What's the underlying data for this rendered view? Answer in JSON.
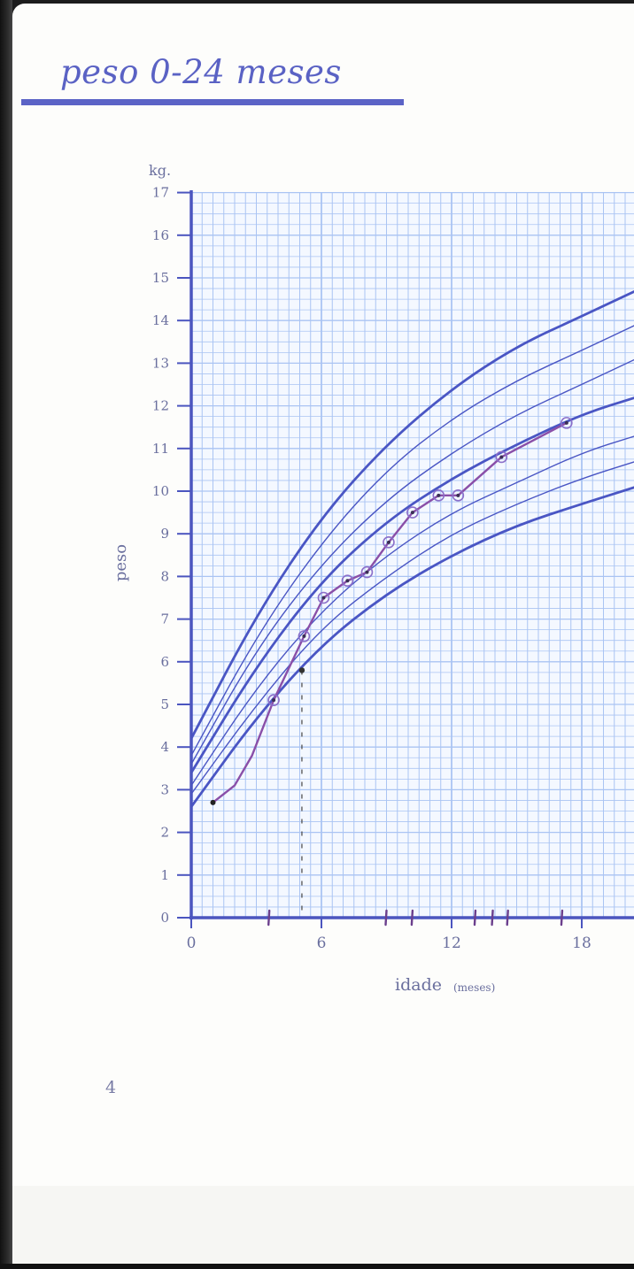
{
  "page": {
    "title": "peso 0-24 meses",
    "page_number": "4"
  },
  "colors": {
    "accent": "#5b63c6",
    "grid": "#aac4f3",
    "axis": "#4b55bf",
    "patient_line": "#8a4fa8"
  },
  "chart_data": {
    "type": "line",
    "title": "",
    "xlabel": "idade",
    "xlabel_unit": "(meses)",
    "ylabel": "peso",
    "yunit": "kg.",
    "xlim": [
      0,
      18
    ],
    "ylim": [
      0,
      17
    ],
    "xticks": [
      "0",
      "6",
      "12",
      "18"
    ],
    "yticks": [
      "0",
      "1",
      "2",
      "3",
      "4",
      "5",
      "6",
      "7",
      "8",
      "9",
      "10",
      "11",
      "12",
      "13",
      "14",
      "15",
      "16",
      "17"
    ],
    "grid": true,
    "reference_curves": [
      {
        "x": [
          0,
          3,
          6,
          9,
          12,
          15,
          18,
          20.5
        ],
        "y": [
          2.6,
          4.7,
          6.4,
          7.6,
          8.5,
          9.2,
          9.7,
          10.1
        ]
      },
      {
        "x": [
          0,
          3,
          6,
          9,
          12,
          15,
          18,
          20.5
        ],
        "y": [
          2.9,
          5.0,
          6.8,
          8.0,
          9.0,
          9.7,
          10.3,
          10.7
        ]
      },
      {
        "x": [
          0,
          3,
          6,
          9,
          12,
          15,
          18,
          20.5
        ],
        "y": [
          3.1,
          5.4,
          7.2,
          8.5,
          9.5,
          10.2,
          10.9,
          11.3
        ]
      },
      {
        "x": [
          0,
          3,
          6,
          9,
          12,
          15,
          18,
          20.5
        ],
        "y": [
          3.4,
          5.9,
          7.9,
          9.3,
          10.3,
          11.1,
          11.8,
          12.2
        ]
      },
      {
        "x": [
          0,
          3,
          6,
          9,
          12,
          15,
          18,
          20.5
        ],
        "y": [
          3.6,
          6.3,
          8.3,
          9.8,
          10.9,
          11.8,
          12.5,
          13.1
        ]
      },
      {
        "x": [
          0,
          3,
          6,
          9,
          12,
          15,
          18,
          20.5
        ],
        "y": [
          3.8,
          6.6,
          8.8,
          10.5,
          11.7,
          12.6,
          13.3,
          13.9
        ]
      },
      {
        "x": [
          0,
          3,
          6,
          9,
          12,
          15,
          18,
          20.5
        ],
        "y": [
          4.2,
          7.1,
          9.4,
          11.1,
          12.4,
          13.4,
          14.1,
          14.7
        ]
      }
    ],
    "patient_series": {
      "x": [
        1,
        2,
        2.8,
        3.8,
        5.2,
        6.1,
        7.2,
        8.1,
        9.1,
        10.2,
        11.4,
        12.3,
        14.3,
        17.3
      ],
      "y": [
        2.7,
        3.1,
        3.8,
        5.1,
        6.6,
        7.5,
        7.9,
        8.1,
        8.8,
        9.5,
        9.9,
        9.9,
        10.8,
        11.6
      ]
    },
    "marked_points": {
      "x": [
        3.8,
        5.2,
        6.1,
        7.2,
        8.1,
        9.1,
        10.2,
        11.4,
        12.3,
        14.3,
        17.3
      ],
      "y": [
        5.1,
        6.6,
        7.5,
        7.9,
        8.1,
        8.8,
        9.5,
        9.9,
        9.9,
        10.8,
        11.6
      ]
    },
    "guide_line": {
      "x": 5.1,
      "y_top": 5.8
    },
    "axis_ticks_marks": [
      3.6,
      9.0,
      10.2,
      13.1,
      13.9,
      14.6,
      17.1
    ]
  }
}
